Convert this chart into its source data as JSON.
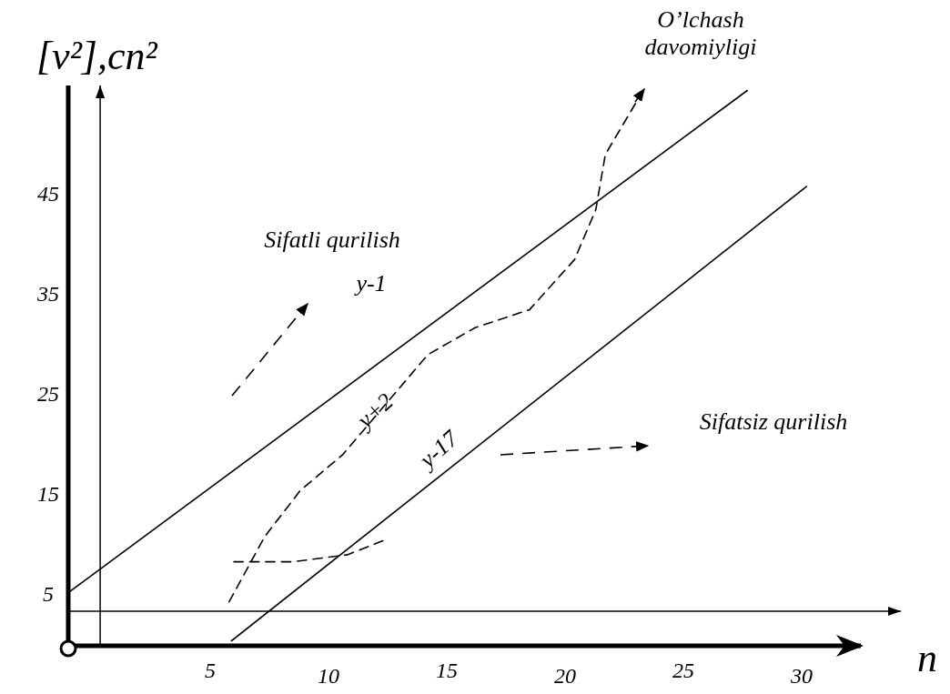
{
  "chart_data": {
    "type": "line",
    "ylabel": "[v²],cn²",
    "xlabel": "n",
    "xlim": [
      -1,
      32.5
    ],
    "ylim": [
      0,
      56
    ],
    "xticks": [
      5,
      10,
      15,
      20,
      25,
      30
    ],
    "yticks": [
      5,
      15,
      25,
      35,
      45
    ],
    "grid": false,
    "marker": "none",
    "ref_lines": [
      {
        "axis": "x",
        "value": 0.35,
        "color": "#000000"
      },
      {
        "axis": "y",
        "value": 3.45,
        "color": "#000000"
      }
    ],
    "annotations": [
      "O’lchash davomiyligi",
      "Sifatli qurilish",
      "y-1",
      "y+2",
      "Sifatsiz qurilish",
      "y-17"
    ],
    "series": [
      {
        "color": "#000000",
        "line_style": "solid",
        "x": [
          -1,
          27.7
        ],
        "values": [
          5.3,
          55.5
        ]
      },
      {
        "color": "#000000",
        "line_style": "solid",
        "x": [
          5.9,
          30.2
        ],
        "values": [
          0.5,
          45.9
        ]
      },
      {
        "color": "#000000",
        "line_style": "dashed",
        "x": [
          5.8,
          7.3,
          8.8,
          10.6,
          14.2,
          16.2,
          18.5,
          20.4,
          21.3,
          21.7,
          23.3
        ],
        "values": [
          4.4,
          10.9,
          15.5,
          19.1,
          29.1,
          31.8,
          33.6,
          38.6,
          43.6,
          49.1,
          55.5
        ]
      },
      {
        "color": "#000000",
        "line_style": "dashed",
        "x": [
          6,
          8.5,
          10.8,
          12.3
        ],
        "values": [
          8.4,
          8.4,
          9.1,
          10.5
        ]
      }
    ]
  }
}
